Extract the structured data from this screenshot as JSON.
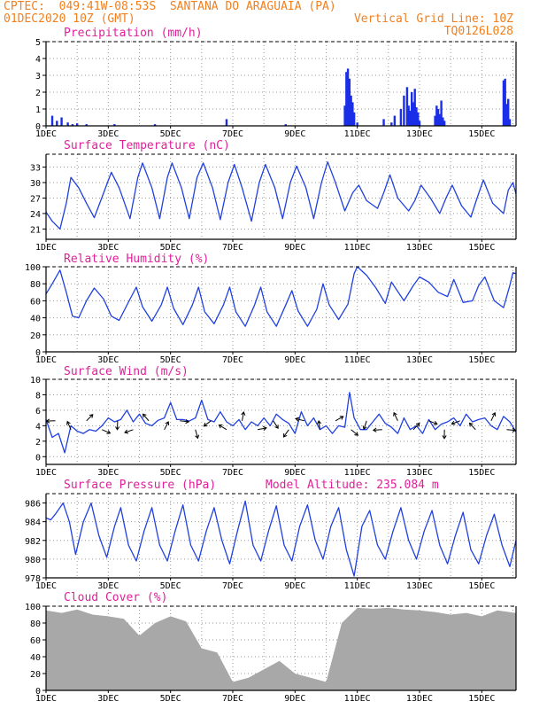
{
  "header": {
    "line1": "CPTEC:  049:41W-08:53S  SANTANA DO ARAGUAIA (PA)",
    "line2_left": "01DEC2020 10Z (GMT)",
    "line2_right": "Vertical Grid Line: 10Z",
    "line3_right": "TQ0126L028"
  },
  "colors": {
    "header": "#f08020",
    "panel_title": "#e0209a",
    "series_line": "#2040e0",
    "bars": "#1a2ee8",
    "cloud": "#a8a8a8",
    "grid": "#999999"
  },
  "x_axis": {
    "date_ticks": [
      "1DEC",
      "3DEC",
      "5DEC",
      "7DEC",
      "9DEC",
      "11DEC",
      "13DEC",
      "15DEC"
    ],
    "day_range": [
      1,
      16.1
    ]
  },
  "chart_data": [
    {
      "type": "bar",
      "title": "Precipitation (mm/h)",
      "ylim": [
        0,
        5
      ],
      "yticks": [
        0,
        1,
        2,
        3,
        4,
        5
      ],
      "x": [
        1.2,
        1.35,
        1.5,
        1.7,
        1.85,
        2.0,
        2.3,
        3.2,
        4.5,
        6.8,
        8.7,
        10.6,
        10.65,
        10.7,
        10.75,
        10.8,
        10.85,
        10.9,
        11.0,
        11.85,
        12.1,
        12.2,
        12.4,
        12.5,
        12.6,
        12.65,
        12.7,
        12.75,
        12.8,
        12.85,
        12.9,
        12.95,
        13.0,
        13.5,
        13.55,
        13.6,
        13.65,
        13.7,
        13.75,
        13.8,
        15.7,
        15.75,
        15.8,
        15.85,
        15.9
      ],
      "values": [
        0.6,
        0.3,
        0.5,
        0.2,
        0.1,
        0.15,
        0.1,
        0.1,
        0.1,
        0.4,
        0.1,
        1.2,
        3.2,
        3.4,
        2.8,
        1.8,
        1.4,
        0.8,
        0.2,
        0.4,
        0.2,
        0.6,
        1.0,
        1.8,
        2.3,
        1.2,
        0.9,
        2.0,
        1.4,
        2.2,
        1.1,
        0.8,
        0.3,
        0.6,
        1.2,
        1.0,
        0.7,
        1.5,
        0.5,
        0.3,
        2.7,
        2.8,
        1.3,
        1.6,
        0.4
      ]
    },
    {
      "type": "line",
      "title": "Surface Temperature (nC)",
      "ylim": [
        19,
        35.5
      ],
      "yticks": [
        21,
        24,
        27,
        30,
        33
      ],
      "x": [
        1.0,
        1.2,
        1.45,
        1.65,
        1.8,
        2.05,
        2.3,
        2.55,
        2.85,
        3.1,
        3.35,
        3.7,
        3.95,
        4.1,
        4.4,
        4.65,
        4.9,
        5.05,
        5.35,
        5.6,
        5.85,
        6.05,
        6.35,
        6.6,
        6.85,
        7.05,
        7.3,
        7.6,
        7.85,
        8.05,
        8.35,
        8.6,
        8.85,
        9.05,
        9.35,
        9.6,
        9.85,
        10.05,
        10.3,
        10.6,
        10.85,
        11.05,
        11.3,
        11.65,
        11.85,
        12.05,
        12.3,
        12.65,
        12.85,
        13.05,
        13.35,
        13.65,
        13.85,
        14.05,
        14.35,
        14.65,
        14.85,
        15.05,
        15.35,
        15.7,
        15.85,
        16.0,
        16.1
      ],
      "values": [
        24.3,
        22.5,
        21.0,
        26.0,
        31.0,
        29.0,
        26.0,
        23.2,
        28.0,
        32.0,
        29.0,
        23.0,
        31.0,
        33.8,
        29.0,
        23.0,
        31.0,
        33.8,
        29.0,
        23.0,
        31.0,
        33.8,
        29.0,
        22.8,
        30.0,
        33.5,
        29.0,
        22.5,
        30.0,
        33.5,
        29.0,
        23.0,
        30.0,
        33.2,
        29.0,
        23.0,
        30.0,
        34.0,
        30.0,
        24.5,
        28.0,
        29.5,
        26.5,
        25.0,
        28.0,
        31.5,
        27.0,
        24.5,
        26.5,
        29.5,
        27.0,
        24.0,
        27.0,
        29.5,
        25.5,
        23.3,
        27.0,
        30.5,
        26.0,
        24.0,
        28.5,
        30.0,
        27.8
      ]
    },
    {
      "type": "line",
      "title": "Relative Humidity (%)",
      "ylim": [
        0,
        100
      ],
      "yticks": [
        0,
        20,
        40,
        60,
        80,
        100
      ],
      "x": [
        1.0,
        1.2,
        1.45,
        1.65,
        1.85,
        2.05,
        2.3,
        2.55,
        2.85,
        3.1,
        3.35,
        3.7,
        3.9,
        4.1,
        4.4,
        4.7,
        4.9,
        5.1,
        5.4,
        5.7,
        5.9,
        6.1,
        6.4,
        6.7,
        6.9,
        7.1,
        7.4,
        7.7,
        7.9,
        8.1,
        8.4,
        8.7,
        8.9,
        9.1,
        9.4,
        9.7,
        9.9,
        10.1,
        10.4,
        10.7,
        10.9,
        11.0,
        11.3,
        11.6,
        11.9,
        12.1,
        12.5,
        12.8,
        13.0,
        13.3,
        13.6,
        13.9,
        14.1,
        14.4,
        14.7,
        14.9,
        15.1,
        15.4,
        15.7,
        15.9,
        16.0,
        16.1
      ],
      "values": [
        68,
        80,
        96,
        70,
        42,
        40,
        60,
        75,
        62,
        42,
        37,
        62,
        76,
        53,
        36,
        55,
        76,
        51,
        32,
        55,
        76,
        47,
        33,
        55,
        76,
        47,
        30,
        55,
        76,
        47,
        30,
        55,
        72,
        48,
        30,
        50,
        80,
        55,
        38,
        56,
        92,
        100,
        90,
        75,
        57,
        82,
        60,
        78,
        88,
        82,
        70,
        65,
        85,
        58,
        60,
        78,
        88,
        60,
        52,
        78,
        93,
        92
      ]
    },
    {
      "type": "line",
      "title": "Surface Wind (m/s)",
      "ylim": [
        -1,
        10
      ],
      "yticks": [
        0,
        2,
        4,
        6,
        8,
        10
      ],
      "x": [
        1.0,
        1.2,
        1.4,
        1.6,
        1.8,
        2.0,
        2.2,
        2.4,
        2.6,
        2.8,
        3.0,
        3.2,
        3.4,
        3.6,
        3.8,
        4.0,
        4.2,
        4.4,
        4.6,
        4.8,
        5.0,
        5.2,
        5.4,
        5.6,
        5.8,
        6.0,
        6.2,
        6.4,
        6.6,
        6.8,
        7.0,
        7.2,
        7.4,
        7.6,
        7.8,
        8.0,
        8.2,
        8.4,
        8.6,
        8.8,
        9.0,
        9.2,
        9.4,
        9.6,
        9.8,
        10.0,
        10.2,
        10.4,
        10.6,
        10.75,
        10.9,
        11.1,
        11.3,
        11.5,
        11.7,
        11.9,
        12.1,
        12.3,
        12.5,
        12.7,
        12.9,
        13.1,
        13.3,
        13.5,
        13.7,
        13.9,
        14.1,
        14.3,
        14.5,
        14.7,
        14.9,
        15.1,
        15.3,
        15.5,
        15.7,
        15.9,
        16.1
      ],
      "values": [
        4.8,
        2.5,
        3.0,
        0.5,
        4.0,
        3.3,
        3.0,
        3.5,
        3.3,
        4.0,
        5.0,
        4.5,
        4.8,
        6.0,
        4.5,
        5.5,
        4.3,
        4.0,
        4.7,
        5.0,
        7.0,
        4.8,
        4.8,
        4.6,
        5.0,
        7.3,
        4.8,
        4.5,
        5.8,
        4.5,
        4.0,
        4.8,
        3.5,
        4.5,
        4.0,
        5.0,
        4.0,
        5.5,
        4.8,
        4.3,
        3.0,
        5.8,
        4.0,
        5.0,
        3.5,
        4.0,
        3.0,
        4.0,
        3.8,
        8.3,
        5.0,
        3.5,
        3.5,
        4.5,
        5.5,
        4.3,
        3.8,
        3.0,
        5.0,
        3.5,
        4.0,
        3.0,
        4.8,
        3.5,
        4.2,
        4.5,
        5.0,
        4.0,
        5.5,
        4.5,
        4.8,
        5.0,
        4.0,
        3.5,
        5.2,
        4.5,
        3.2
      ]
    },
    {
      "type": "line",
      "title": "Surface Pressure (hPa)",
      "annotation": "Model Altitude: 235.084 m",
      "ylim": [
        978,
        987
      ],
      "yticks": [
        978,
        980,
        982,
        984,
        986
      ],
      "x": [
        1.0,
        1.15,
        1.3,
        1.55,
        1.75,
        1.95,
        2.2,
        2.45,
        2.7,
        2.95,
        3.2,
        3.4,
        3.65,
        3.9,
        4.15,
        4.4,
        4.65,
        4.9,
        5.15,
        5.4,
        5.65,
        5.9,
        6.15,
        6.4,
        6.65,
        6.9,
        7.15,
        7.4,
        7.65,
        7.9,
        8.15,
        8.4,
        8.65,
        8.9,
        9.15,
        9.4,
        9.65,
        9.9,
        10.15,
        10.4,
        10.65,
        10.9,
        11.15,
        11.4,
        11.65,
        11.9,
        12.15,
        12.4,
        12.65,
        12.9,
        13.15,
        13.4,
        13.65,
        13.9,
        14.15,
        14.4,
        14.65,
        14.9,
        15.15,
        15.4,
        15.65,
        15.9,
        16.1
      ],
      "values": [
        984.4,
        984.2,
        984.8,
        986.0,
        984.0,
        980.5,
        984.0,
        986.0,
        982.5,
        980.2,
        983.5,
        985.5,
        981.5,
        979.8,
        983.0,
        985.5,
        981.5,
        979.8,
        983.0,
        985.8,
        981.5,
        979.8,
        983.0,
        985.5,
        982.0,
        979.5,
        983.0,
        986.2,
        981.5,
        979.8,
        983.0,
        985.7,
        981.5,
        979.8,
        983.5,
        985.8,
        982.0,
        980.0,
        983.5,
        985.5,
        981.0,
        978.2,
        983.5,
        985.2,
        981.5,
        980.0,
        983.0,
        985.5,
        982.0,
        980.0,
        983.0,
        985.2,
        981.5,
        979.5,
        982.5,
        985.0,
        981.0,
        979.5,
        982.5,
        984.8,
        981.5,
        979.2,
        982.0
      ]
    },
    {
      "type": "area",
      "title": "Cloud Cover (%)",
      "ylim": [
        0,
        100
      ],
      "yticks": [
        0,
        20,
        40,
        60,
        80,
        100
      ],
      "x": [
        1.0,
        1.5,
        2.0,
        2.5,
        3.0,
        3.5,
        4.0,
        4.5,
        5.0,
        5.5,
        6.0,
        6.5,
        7.0,
        7.5,
        8.0,
        8.5,
        9.0,
        9.5,
        10.0,
        10.5,
        11.0,
        11.5,
        12.0,
        12.5,
        13.0,
        13.5,
        14.0,
        14.5,
        15.0,
        15.5,
        16.1
      ],
      "values": [
        95,
        92,
        96,
        90,
        88,
        85,
        65,
        80,
        88,
        82,
        50,
        45,
        10,
        15,
        25,
        35,
        20,
        15,
        10,
        80,
        98,
        97,
        98,
        96,
        95,
        93,
        90,
        92,
        88,
        95,
        92
      ]
    }
  ]
}
